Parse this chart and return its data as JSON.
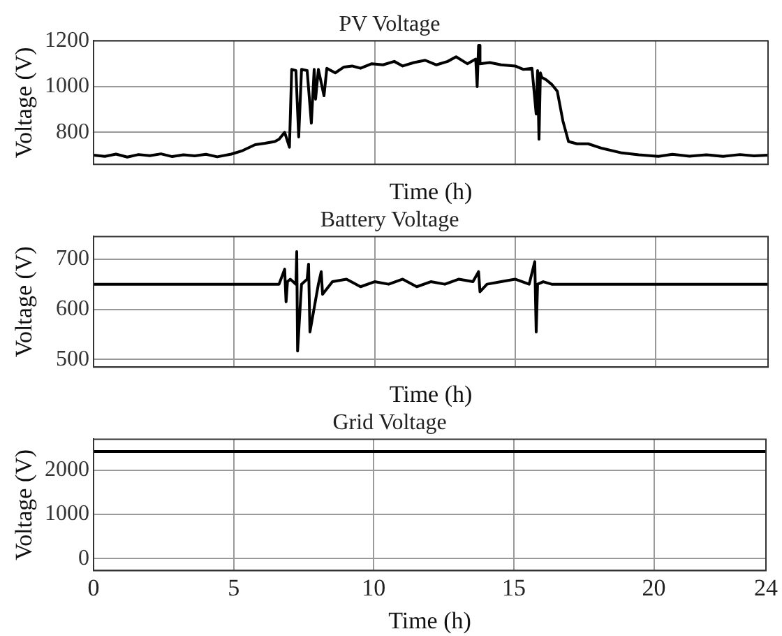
{
  "chart_data": [
    {
      "type": "line",
      "title": "PV Voltage",
      "xlabel": "Time (h)",
      "ylabel": "Voltage (V)",
      "xlim": [
        0,
        24
      ],
      "xticks": [
        0,
        5,
        10,
        15,
        20,
        24
      ],
      "ylim": [
        660,
        1200
      ],
      "yticks": [
        800,
        1000,
        1200
      ],
      "grid": true,
      "tick_labels": "y",
      "marker": "none",
      "line_style": "solid",
      "series": [
        {
          "color": "#000000",
          "x": [
            0,
            0.4,
            0.8,
            1.2,
            1.6,
            2,
            2.4,
            2.8,
            3.2,
            3.6,
            4,
            4.4,
            4.9,
            5.3,
            5.75,
            6.1,
            6.45,
            6.6,
            6.8,
            6.97,
            7.05,
            7.2,
            7.3,
            7.4,
            7.6,
            7.75,
            7.85,
            7.9,
            8.0,
            8.2,
            8.3,
            8.6,
            8.9,
            9.2,
            9.5,
            9.9,
            10.3,
            10.7,
            11,
            11.4,
            11.8,
            12.2,
            12.6,
            12.9,
            13.3,
            13.6,
            13.65,
            13.7,
            13.72,
            13.75,
            14.1,
            14.5,
            15,
            15.3,
            15.6,
            15.75,
            15.8,
            15.85,
            15.9,
            15.95,
            16.1,
            16.3,
            16.5,
            16.7,
            16.9,
            17.2,
            17.6,
            18.1,
            18.8,
            19.4,
            20.1,
            20.6,
            21.2,
            21.8,
            22.4,
            23,
            23.5,
            24
          ],
          "values": [
            700,
            695,
            705,
            692,
            703,
            698,
            706,
            694,
            702,
            697,
            704,
            693,
            705,
            720,
            746,
            752,
            760,
            770,
            800,
            735,
            1075,
            1070,
            780,
            1075,
            1070,
            840,
            1075,
            945,
            1075,
            960,
            1080,
            1060,
            1085,
            1090,
            1080,
            1100,
            1095,
            1110,
            1090,
            1105,
            1115,
            1095,
            1110,
            1130,
            1100,
            1120,
            1000,
            1180,
            1180,
            1100,
            1105,
            1095,
            1090,
            1075,
            1080,
            880,
            1070,
            770,
            1060,
            1040,
            1030,
            1010,
            980,
            850,
            760,
            750,
            750,
            730,
            710,
            702,
            695,
            704,
            696,
            702,
            695,
            703,
            697,
            700
          ]
        }
      ]
    },
    {
      "type": "line",
      "title": "Battery Voltage",
      "xlabel": "Time (h)",
      "ylabel": "Voltage (V)",
      "xlim": [
        0,
        24
      ],
      "xticks": [
        0,
        5,
        10,
        15,
        20,
        24
      ],
      "ylim": [
        485,
        745
      ],
      "yticks": [
        500,
        600,
        700
      ],
      "grid": true,
      "tick_labels": "y",
      "marker": "none",
      "line_style": "solid",
      "series": [
        {
          "color": "#000000",
          "x": [
            0,
            6.6,
            6.8,
            6.85,
            6.9,
            7.0,
            7.2,
            7.23,
            7.26,
            7.4,
            7.6,
            7.65,
            7.7,
            8.0,
            8.1,
            8.15,
            8.5,
            9,
            9.5,
            10,
            10.5,
            11,
            11.5,
            12,
            12.5,
            13,
            13.5,
            13.7,
            13.75,
            14,
            14.5,
            15,
            15.5,
            15.7,
            15.75,
            15.8,
            16,
            16.3,
            16.6,
            17,
            24
          ],
          "values": [
            650,
            650,
            680,
            615,
            655,
            660,
            650,
            715,
            517,
            650,
            660,
            690,
            555,
            650,
            675,
            630,
            655,
            660,
            645,
            655,
            650,
            660,
            645,
            655,
            650,
            660,
            655,
            675,
            635,
            650,
            655,
            660,
            650,
            695,
            555,
            650,
            655,
            650,
            650,
            650,
            650
          ]
        }
      ]
    },
    {
      "type": "line",
      "title": "Grid Voltage",
      "xlabel": "Time (h)",
      "ylabel": "Voltage (V)",
      "xlim": [
        0,
        24
      ],
      "xticks": [
        0,
        5,
        10,
        15,
        20,
        24
      ],
      "ylim": [
        -270,
        2700
      ],
      "yticks": [
        0,
        1000,
        2000
      ],
      "grid": true,
      "marker": "none",
      "line_style": "solid",
      "series": [
        {
          "color": "#000000",
          "x": [
            0,
            24
          ],
          "values": [
            2420,
            2420
          ]
        }
      ]
    }
  ]
}
